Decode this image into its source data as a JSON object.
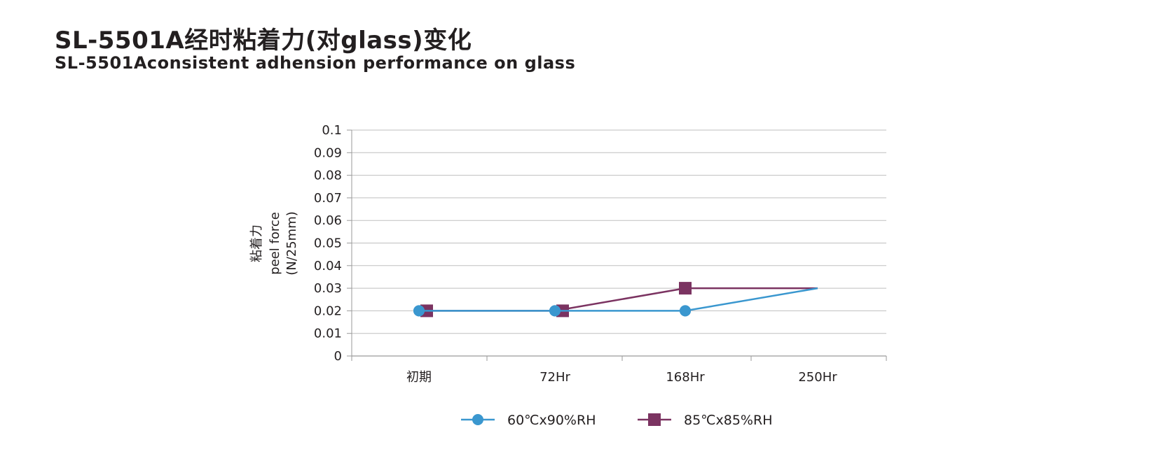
{
  "header": {
    "title": "SL-5501A经时粘着力(对glass)变化",
    "subtitle": "SL-5501Aconsistent adhension performance on glass"
  },
  "chart_data": {
    "type": "line",
    "title": "SL-5501A经时粘着力(对glass)变化",
    "subtitle": "SL-5501Aconsistent adhension performance on glass",
    "categories": [
      "初期",
      "72Hr",
      "168Hr",
      "250Hr"
    ],
    "ylabel_lines": [
      "粘着力",
      "peel force",
      "(N/25mm)"
    ],
    "xlabel": "",
    "ylim": [
      0,
      0.1
    ],
    "yticks": [
      "0",
      "0.01",
      "0.02",
      "0.03",
      "0.04",
      "0.05",
      "0.06",
      "0.07",
      "0.08",
      "0.09",
      "0.1"
    ],
    "grid": true,
    "legend": "bottom",
    "series": [
      {
        "name": "60℃x90%RH",
        "values": [
          0.02,
          0.02,
          0.02,
          0.03
        ],
        "color": "#3a97cf",
        "marker": "circle"
      },
      {
        "name": "85℃x85%RH",
        "values": [
          0.02,
          0.02,
          0.03,
          0.03
        ],
        "color": "#7b3361",
        "marker": "square"
      }
    ]
  }
}
